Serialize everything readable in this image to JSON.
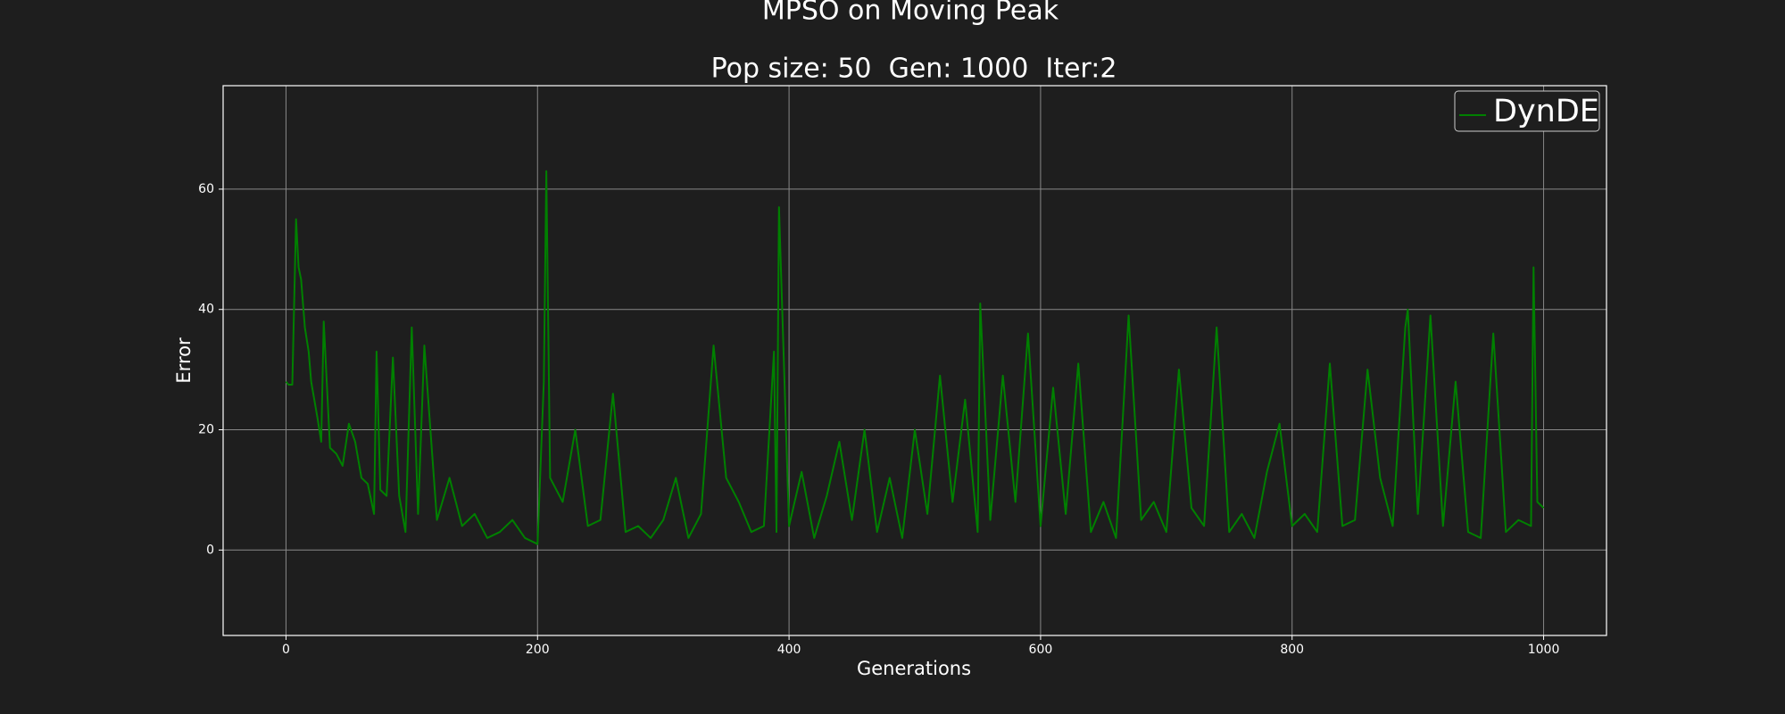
{
  "chart_data": {
    "type": "line",
    "title": "MPSO on Moving Peak",
    "subtitle": "Pop size: 50  Gen: 1000  Iter:2",
    "x_label": "Generations",
    "y_label": "Error",
    "x": [
      0,
      2,
      5,
      8,
      10,
      12,
      15,
      18,
      20,
      25,
      28,
      30,
      35,
      40,
      45,
      50,
      55,
      60,
      65,
      70,
      72,
      75,
      80,
      85,
      90,
      95,
      100,
      105,
      110,
      120,
      130,
      140,
      150,
      160,
      170,
      180,
      190,
      200,
      205,
      207,
      210,
      220,
      230,
      240,
      250,
      260,
      270,
      280,
      290,
      300,
      310,
      320,
      330,
      340,
      350,
      360,
      370,
      380,
      388,
      390,
      392,
      400,
      410,
      420,
      430,
      440,
      450,
      460,
      470,
      480,
      490,
      500,
      510,
      520,
      530,
      540,
      550,
      552,
      560,
      570,
      580,
      590,
      600,
      610,
      620,
      630,
      640,
      650,
      660,
      670,
      680,
      690,
      700,
      710,
      720,
      730,
      740,
      750,
      760,
      770,
      780,
      790,
      800,
      810,
      820,
      830,
      840,
      850,
      860,
      870,
      880,
      890,
      892,
      900,
      910,
      920,
      930,
      940,
      950,
      960,
      970,
      980,
      990,
      992,
      995,
      1000
    ],
    "series": [
      {
        "name": "DynDE",
        "color": "#008000",
        "values": [
          28,
          27.5,
          27.5,
          55,
          47,
          45,
          37,
          33,
          28,
          22,
          18,
          38,
          17,
          16,
          14,
          21,
          18,
          12,
          11,
          6,
          33,
          10,
          9,
          32,
          9,
          3,
          37,
          6,
          34,
          5,
          12,
          4,
          6,
          2,
          3,
          5,
          2,
          1,
          28,
          63,
          12,
          8,
          20,
          4,
          5,
          26,
          3,
          4,
          2,
          5,
          12,
          2,
          6,
          34,
          12,
          8,
          3,
          4,
          33,
          3,
          57,
          4,
          13,
          2,
          9,
          18,
          5,
          20,
          3,
          12,
          2,
          20,
          6,
          29,
          8,
          25,
          3,
          41,
          5,
          29,
          8,
          36,
          4,
          27,
          6,
          31,
          3,
          8,
          2,
          39,
          5,
          8,
          3,
          30,
          7,
          4,
          37,
          3,
          6,
          2,
          13,
          21,
          4,
          6,
          3,
          31,
          4,
          5,
          30,
          12,
          4,
          37,
          40,
          6,
          39,
          4,
          28,
          3,
          2,
          36,
          3,
          5,
          4,
          47,
          8,
          7
        ]
      }
    ],
    "xlim": [
      -50,
      1050
    ],
    "ylim": [
      -14.2,
      77.2
    ],
    "xticks": [
      0,
      200,
      400,
      600,
      800,
      1000
    ],
    "yticks": [
      0,
      20,
      40,
      60
    ],
    "grid": true,
    "legend": "upper right"
  }
}
